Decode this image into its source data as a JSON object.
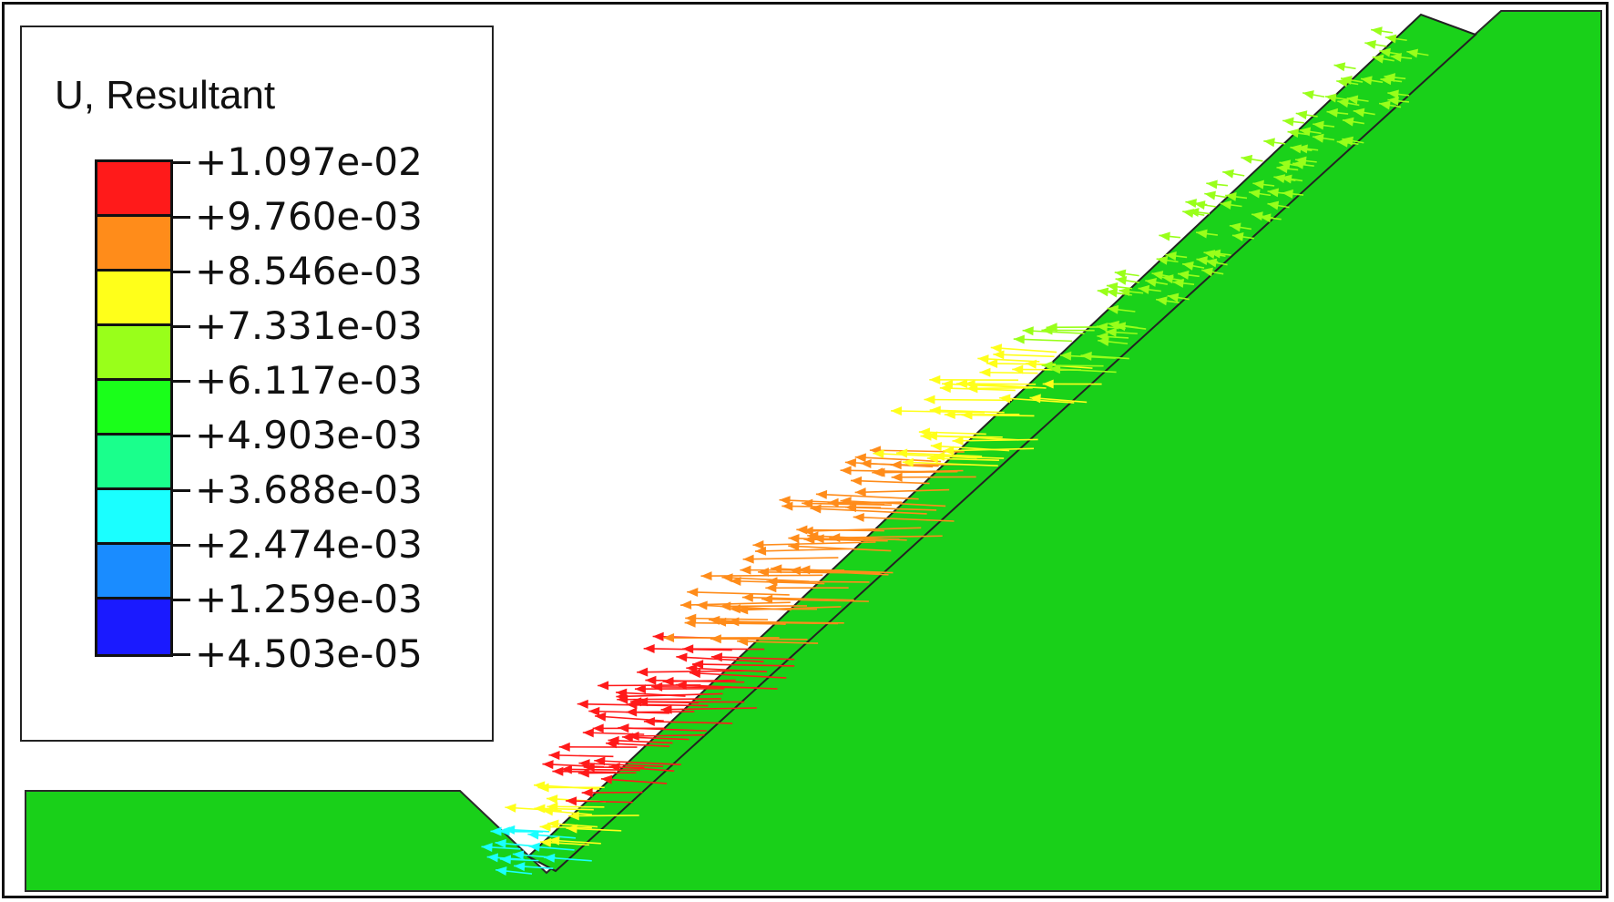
{
  "legend": {
    "title": "U, Resultant",
    "values": [
      "+1.097e-02",
      "+9.760e-03",
      "+8.546e-03",
      "+7.331e-03",
      "+6.117e-03",
      "+4.903e-03",
      "+3.688e-03",
      "+2.474e-03",
      "+1.259e-03",
      "+4.503e-05"
    ],
    "band_colors": [
      "#ff1a1a",
      "#ff8c1a",
      "#ffff1a",
      "#99ff1a",
      "#1aff1a",
      "#1aff8c",
      "#1affff",
      "#1a8cff",
      "#1a1aff"
    ]
  },
  "colors": {
    "ground": "#19d019",
    "outline": "#222222"
  }
}
